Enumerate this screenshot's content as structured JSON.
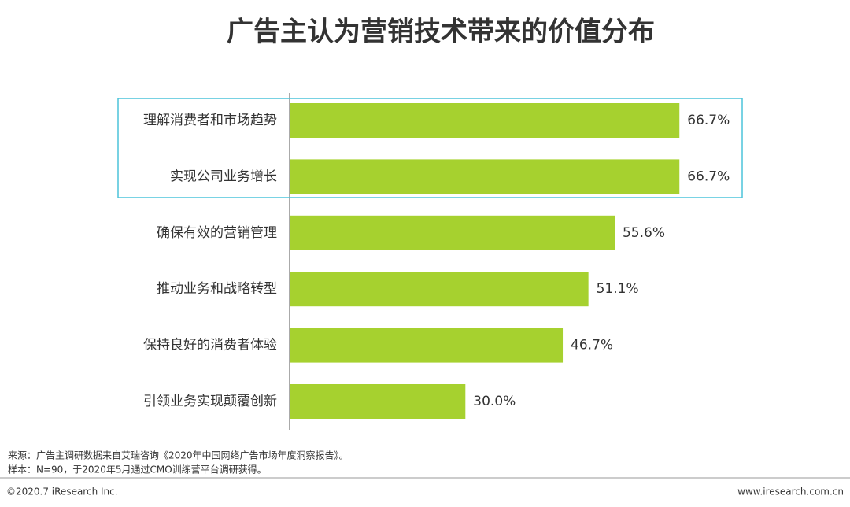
{
  "chart_data": {
    "type": "hbar",
    "title": "广告主认为营销技术带来的价值分布",
    "categories": [
      "理解消费者和市场趋势",
      "实现公司业务增长",
      "确保有效的营销管理",
      "推动业务和战略转型",
      "保持良好的消费者体验",
      "引领业务实现颠覆创新"
    ],
    "values": [
      66.7,
      66.7,
      55.6,
      51.1,
      46.7,
      30.0
    ],
    "value_labels": [
      "66.7%",
      "66.7%",
      "55.6%",
      "51.1%",
      "46.7%",
      "30.0%"
    ],
    "color": "#a6d12f"
  },
  "footer": {
    "source": "来源：广告主调研数据来自艾瑞咨询《2020年中国网络广告市场年度洞察报告》。",
    "sample": "样本：N=90，于2020年5月通过CMO训练营平台调研获得。",
    "copyright": "©2020.7 iResearch Inc.",
    "website": "www.iresearch.com.cn"
  }
}
